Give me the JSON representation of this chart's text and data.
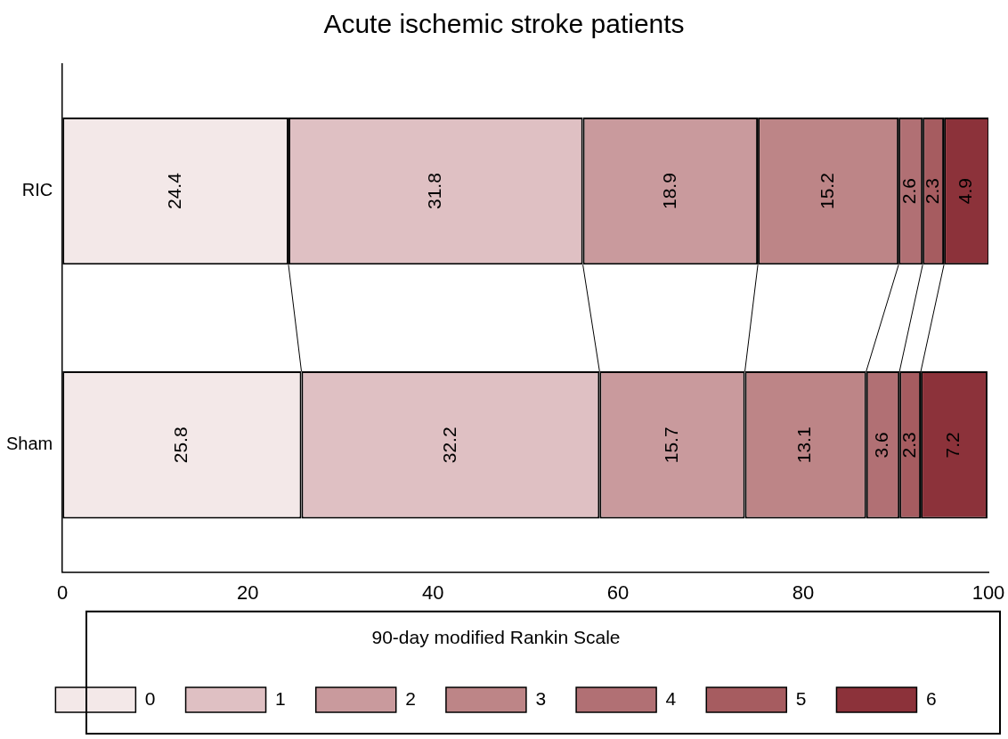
{
  "chart_data": {
    "type": "bar",
    "orientation": "horizontal",
    "stacked": true,
    "title": "Acute ischemic stroke patients",
    "legend_title": "90-day modified Rankin Scale",
    "legend": "bottom",
    "data_labels": true,
    "grid": false,
    "categories": [
      "RIC",
      "Sham"
    ],
    "xlim": [
      0,
      100
    ],
    "xticks": [
      0,
      20,
      40,
      60,
      80,
      100
    ],
    "series": [
      {
        "name": "0",
        "color": "#f3e8e8",
        "values": [
          24.4,
          25.8
        ]
      },
      {
        "name": "1",
        "color": "#dfc0c3",
        "values": [
          31.8,
          32.2
        ]
      },
      {
        "name": "2",
        "color": "#c99a9d",
        "values": [
          18.9,
          15.7
        ]
      },
      {
        "name": "3",
        "color": "#bd8587",
        "values": [
          15.2,
          13.1
        ]
      },
      {
        "name": "4",
        "color": "#b17074",
        "values": [
          2.6,
          3.6
        ]
      },
      {
        "name": "5",
        "color": "#a65c60",
        "values": [
          2.3,
          2.3
        ]
      },
      {
        "name": "6",
        "color": "#8c323a",
        "values": [
          4.9,
          7.2
        ]
      }
    ]
  }
}
